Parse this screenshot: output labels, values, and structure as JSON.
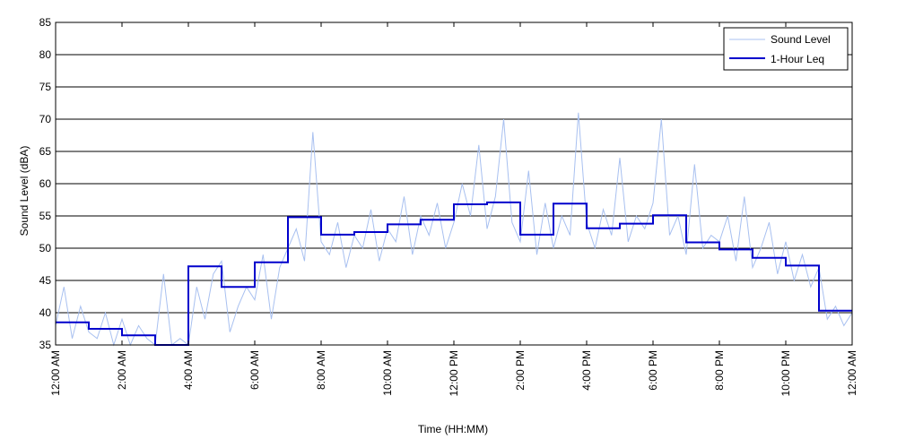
{
  "chart_data": {
    "type": "line",
    "title": "",
    "xlabel": "Time (HH:MM)",
    "ylabel": "Sound Level (dBA)",
    "xlim_hours": [
      0,
      24
    ],
    "ylim": [
      35,
      85
    ],
    "y_ticks": [
      35,
      40,
      45,
      50,
      55,
      60,
      65,
      70,
      75,
      80,
      85
    ],
    "x_ticks": [
      {
        "hour": 0,
        "label": "12:00 AM"
      },
      {
        "hour": 2,
        "label": "2:00 AM"
      },
      {
        "hour": 4,
        "label": "4:00 AM"
      },
      {
        "hour": 6,
        "label": "6:00 AM"
      },
      {
        "hour": 8,
        "label": "8:00 AM"
      },
      {
        "hour": 10,
        "label": "10:00 AM"
      },
      {
        "hour": 12,
        "label": "12:00 PM"
      },
      {
        "hour": 14,
        "label": "2:00 PM"
      },
      {
        "hour": 16,
        "label": "4:00 PM"
      },
      {
        "hour": 18,
        "label": "6:00 PM"
      },
      {
        "hour": 20,
        "label": "8:00 PM"
      },
      {
        "hour": 22,
        "label": "10:00 PM"
      },
      {
        "hour": 24,
        "label": "12:00 AM"
      }
    ],
    "grid": "horizontal",
    "legend_position": "top-right",
    "series": [
      {
        "name": "Sound Level",
        "color": "#a8c0f0",
        "x_hours": [
          0.0,
          0.25,
          0.5,
          0.75,
          1.0,
          1.25,
          1.5,
          1.75,
          2.0,
          2.25,
          2.5,
          2.75,
          3.0,
          3.25,
          3.5,
          3.75,
          4.0,
          4.25,
          4.5,
          4.75,
          5.0,
          5.25,
          5.5,
          5.75,
          6.0,
          6.25,
          6.5,
          6.75,
          7.0,
          7.25,
          7.5,
          7.75,
          8.0,
          8.25,
          8.5,
          8.75,
          9.0,
          9.25,
          9.5,
          9.75,
          10.0,
          10.25,
          10.5,
          10.75,
          11.0,
          11.25,
          11.5,
          11.75,
          12.0,
          12.25,
          12.5,
          12.75,
          13.0,
          13.25,
          13.5,
          13.75,
          14.0,
          14.25,
          14.5,
          14.75,
          15.0,
          15.25,
          15.5,
          15.75,
          16.0,
          16.25,
          16.5,
          16.75,
          17.0,
          17.25,
          17.5,
          17.75,
          18.0,
          18.25,
          18.5,
          18.75,
          19.0,
          19.25,
          19.5,
          19.75,
          20.0,
          20.25,
          20.5,
          20.75,
          21.0,
          21.25,
          21.5,
          21.75,
          22.0,
          22.25,
          22.5,
          22.75,
          23.0,
          23.25,
          23.5,
          23.75,
          24.0
        ],
        "values": [
          38,
          44,
          36,
          41,
          37,
          36,
          40,
          35,
          39,
          35,
          38,
          36,
          35,
          46,
          35,
          36,
          35,
          44,
          39,
          46,
          48,
          37,
          41,
          44,
          42,
          49,
          39,
          47,
          50,
          53,
          48,
          68,
          51,
          49,
          54,
          47,
          52,
          50,
          56,
          48,
          53,
          51,
          58,
          49,
          55,
          52,
          57,
          50,
          54,
          60,
          55,
          66,
          53,
          58,
          70,
          54,
          51,
          62,
          49,
          57,
          50,
          55,
          52,
          71,
          54,
          50,
          56,
          52,
          64,
          51,
          55,
          53,
          57,
          70,
          52,
          55,
          49,
          63,
          50,
          52,
          51,
          55,
          48,
          58,
          47,
          50,
          54,
          46,
          51,
          45,
          49,
          44,
          47,
          39,
          41,
          38,
          40
        ]
      },
      {
        "name": "1-Hour Leq",
        "color": "#0000cc",
        "step_start_hours": [
          0,
          1,
          2,
          3,
          4,
          5,
          6,
          7,
          8,
          9,
          10,
          11,
          12,
          13,
          14,
          15,
          16,
          17,
          18,
          19,
          20,
          21,
          22,
          23
        ],
        "values": [
          38.5,
          37.5,
          36.5,
          35.0,
          47.2,
          44.0,
          47.8,
          54.8,
          52.1,
          52.5,
          53.7,
          54.4,
          56.8,
          57.1,
          52.1,
          56.9,
          53.1,
          53.8,
          55.1,
          50.9,
          49.8,
          48.5,
          47.3,
          40.3
        ]
      }
    ]
  }
}
